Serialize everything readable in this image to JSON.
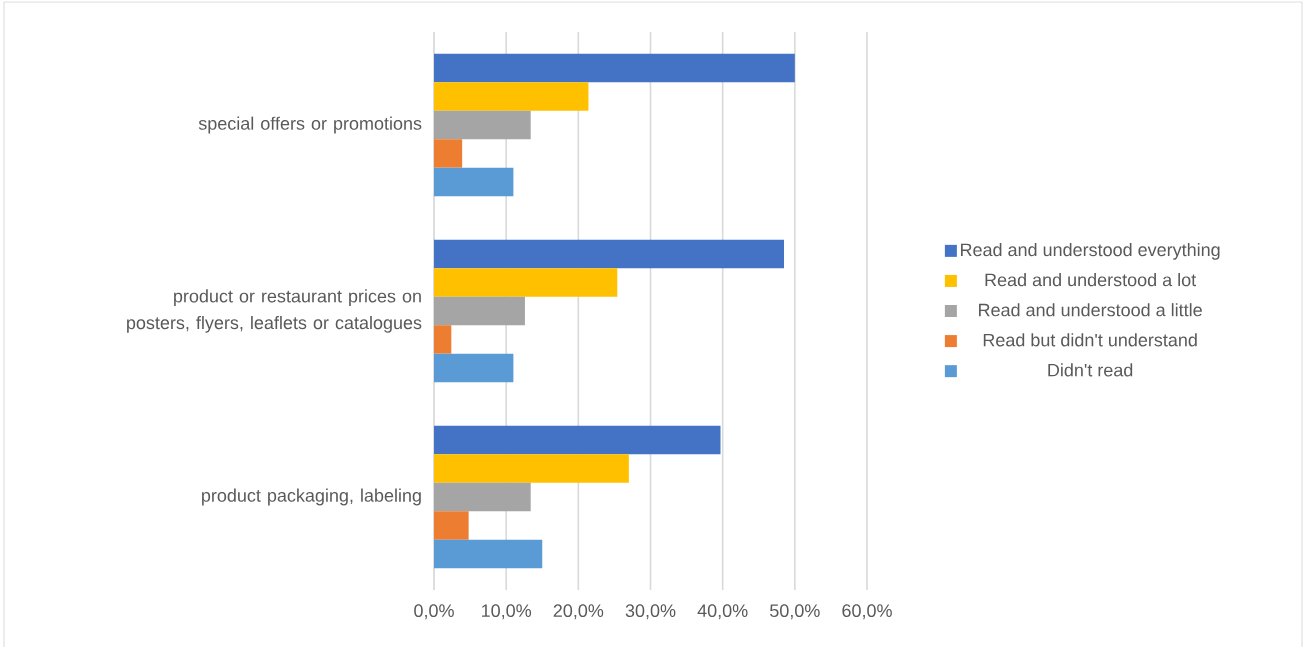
{
  "chart_data": {
    "type": "bar",
    "orientation": "horizontal",
    "categories": [
      "special offers or promotions",
      "product or restaurant prices on posters, flyers, leaflets or catalogues",
      "product packaging, labeling"
    ],
    "series": [
      {
        "name": "Read and understood everything",
        "color": "#4472c4",
        "values": [
          50.0,
          48.5,
          39.7
        ]
      },
      {
        "name": "Read and understood a lot",
        "color": "#ffc000",
        "values": [
          21.4,
          25.4,
          27.0
        ]
      },
      {
        "name": "Read and understood a little",
        "color": "#a5a5a5",
        "values": [
          13.4,
          12.6,
          13.4
        ]
      },
      {
        "name": "Read but didn't understand",
        "color": "#ed7d31",
        "values": [
          3.9,
          2.4,
          4.8
        ]
      },
      {
        "name": "Didn't read",
        "color": "#5b9bd5",
        "values": [
          11.0,
          11.0,
          15.0
        ]
      }
    ],
    "xlim": [
      0,
      60
    ],
    "xticks": [
      {
        "value": 0,
        "label": "0,0%"
      },
      {
        "value": 10,
        "label": "10,0%"
      },
      {
        "value": 20,
        "label": "20,0%"
      },
      {
        "value": 30,
        "label": "30,0%"
      },
      {
        "value": 40,
        "label": "40,0%"
      },
      {
        "value": 50,
        "label": "50,0%"
      },
      {
        "value": 60,
        "label": "60,0%"
      }
    ],
    "grid": "x",
    "legend": "right"
  }
}
